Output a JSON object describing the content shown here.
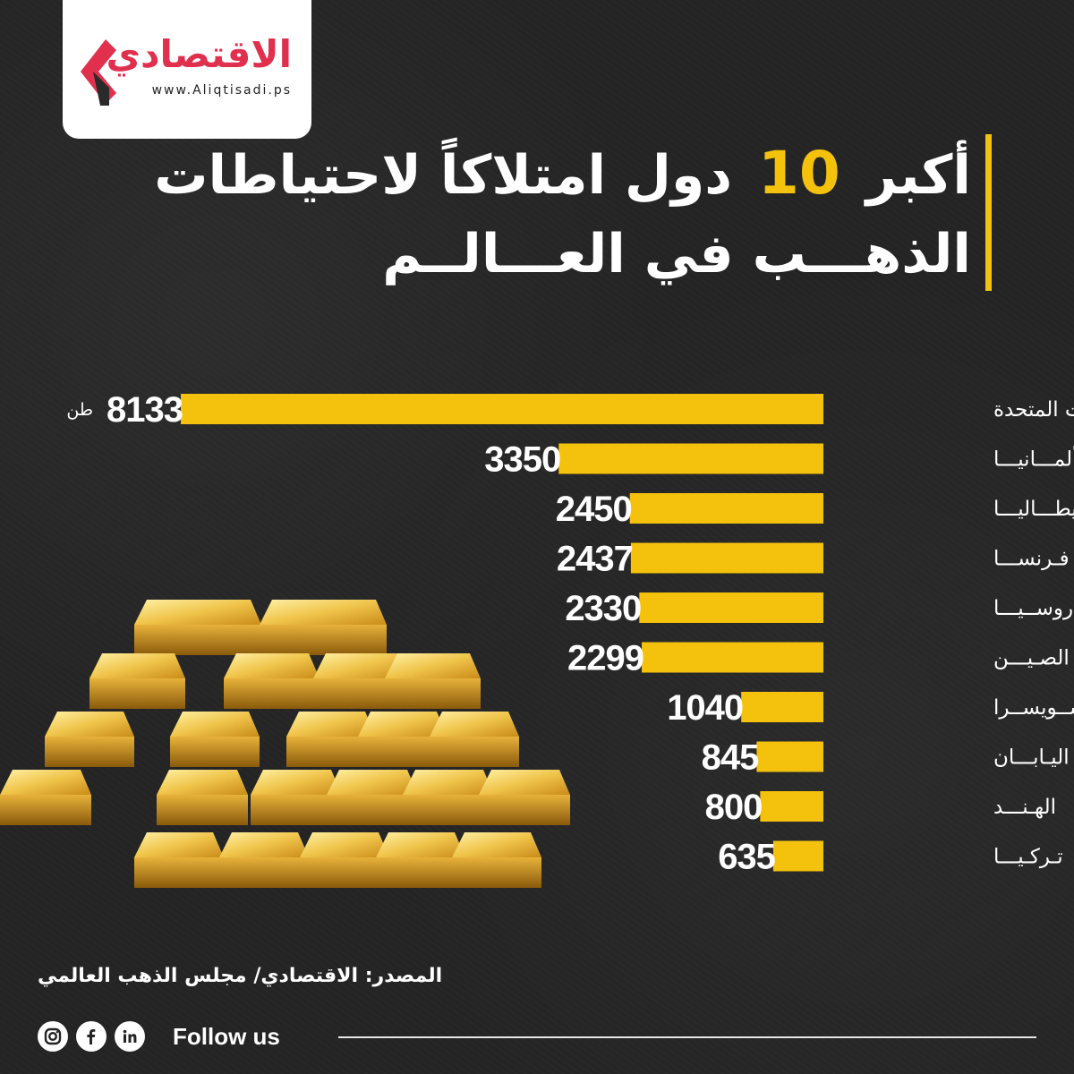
{
  "brand": {
    "name": "الاقتصادي",
    "url": "www.Aliqtisadi.ps",
    "color": "#e0304e"
  },
  "title": {
    "part1": "أكبر",
    "number": "10",
    "part2": "دول امتلاكاً لاحتياطات",
    "line2": "الذهـــب في العـــالــم"
  },
  "accent_color": "#f4c20d",
  "unit": "طن",
  "chart_data": {
    "type": "bar",
    "orientation": "horizontal",
    "categories": [
      "الولايات المتحدة",
      "ألمـــانيـــا",
      "إيطـــاليـــا",
      "فـرنســـا",
      "روســيـــا",
      "الصـيـــن",
      "ســويســرا",
      "اليـابـــان",
      "الهـنـــد",
      "تـركـيـــا"
    ],
    "values": [
      8133,
      3350,
      2450,
      2437,
      2330,
      2299,
      1040,
      845,
      800,
      635
    ],
    "unit": "طن",
    "bar_color": "#f4c20d"
  },
  "source_text": "المصدر: الاقتصادي/  مجلس الذهب العالمي",
  "social": {
    "follow_label": "Follow us",
    "icons": [
      "instagram-icon",
      "facebook-icon",
      "linkedin-icon"
    ]
  }
}
